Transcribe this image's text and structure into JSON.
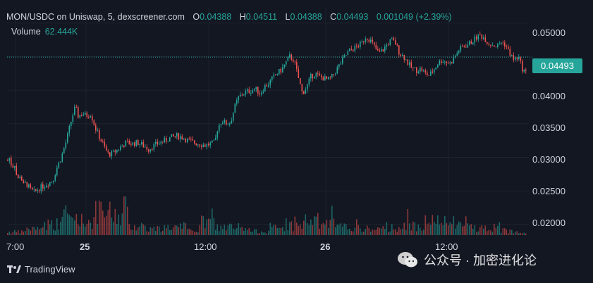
{
  "header": {
    "symbol": "MON/USDC on Uniswap, 5, dexscreener.com",
    "o_label": "O",
    "o_value": "0.04388",
    "h_label": "H",
    "h_value": "0.04511",
    "l_label": "L",
    "l_value": "0.04388",
    "c_label": "C",
    "c_value": "0.04493",
    "change": "0.001049 (+2.39%)"
  },
  "volume": {
    "label": "Volume",
    "value": "62.444K"
  },
  "last_price": "0.04493",
  "footer": {
    "brand": "TradingView"
  },
  "watermark": {
    "text": "公众号 · 加密进化论"
  },
  "colors": {
    "background": "#131722",
    "up": "#26a69a",
    "down": "#ef5350"
  },
  "chart_data": {
    "type": "candlestick",
    "title": "MON/USDC on Uniswap, 5, dexscreener.com",
    "interval": "5",
    "y_ticks": [
      "0.05000",
      "0.04500",
      "0.04000",
      "0.03500",
      "0.03000",
      "0.02500",
      "0.02000"
    ],
    "ylim": [
      0.0184,
      0.0524
    ],
    "x_ticks": [
      "7:00",
      "25",
      "12:00",
      "26",
      "12:00"
    ],
    "last_price": 0.04493,
    "price_path": [
      [
        0,
        0.0295
      ],
      [
        3,
        0.03
      ],
      [
        6,
        0.0285
      ],
      [
        10,
        0.029
      ],
      [
        14,
        0.0265
      ],
      [
        18,
        0.0275
      ],
      [
        22,
        0.0258
      ],
      [
        26,
        0.0262
      ],
      [
        32,
        0.0252
      ],
      [
        38,
        0.0248
      ],
      [
        46,
        0.0255
      ],
      [
        52,
        0.0258
      ],
      [
        58,
        0.0262
      ],
      [
        64,
        0.0265
      ],
      [
        70,
        0.0285
      ],
      [
        76,
        0.03
      ],
      [
        82,
        0.032
      ],
      [
        88,
        0.0345
      ],
      [
        92,
        0.0362
      ],
      [
        96,
        0.0375
      ],
      [
        100,
        0.0362
      ],
      [
        106,
        0.0365
      ],
      [
        112,
        0.0362
      ],
      [
        118,
        0.0365
      ],
      [
        124,
        0.0345
      ],
      [
        130,
        0.033
      ],
      [
        136,
        0.0318
      ],
      [
        142,
        0.0305
      ],
      [
        148,
        0.0305
      ],
      [
        154,
        0.031
      ],
      [
        160,
        0.0315
      ],
      [
        168,
        0.0322
      ],
      [
        176,
        0.032
      ],
      [
        184,
        0.0322
      ],
      [
        192,
        0.0318
      ],
      [
        200,
        0.0312
      ],
      [
        208,
        0.0318
      ],
      [
        216,
        0.0322
      ],
      [
        224,
        0.0325
      ],
      [
        232,
        0.033
      ],
      [
        240,
        0.0332
      ],
      [
        248,
        0.033
      ],
      [
        256,
        0.0325
      ],
      [
        264,
        0.0322
      ],
      [
        272,
        0.032
      ],
      [
        280,
        0.0318
      ],
      [
        288,
        0.032
      ],
      [
        294,
        0.0322
      ],
      [
        298,
        0.0345
      ],
      [
        304,
        0.0355
      ],
      [
        310,
        0.035
      ],
      [
        316,
        0.0352
      ],
      [
        322,
        0.0375
      ],
      [
        328,
        0.039
      ],
      [
        334,
        0.0395
      ],
      [
        340,
        0.0398
      ],
      [
        346,
        0.04
      ],
      [
        352,
        0.0402
      ],
      [
        358,
        0.0395
      ],
      [
        364,
        0.0405
      ],
      [
        370,
        0.041
      ],
      [
        376,
        0.0418
      ],
      [
        382,
        0.0425
      ],
      [
        388,
        0.043
      ],
      [
        394,
        0.044
      ],
      [
        400,
        0.045
      ],
      [
        406,
        0.0445
      ],
      [
        412,
        0.042
      ],
      [
        418,
        0.0395
      ],
      [
        424,
        0.0405
      ],
      [
        430,
        0.042
      ],
      [
        436,
        0.0425
      ],
      [
        442,
        0.042
      ],
      [
        448,
        0.0418
      ],
      [
        454,
        0.0415
      ],
      [
        460,
        0.042
      ],
      [
        466,
        0.043
      ],
      [
        472,
        0.044
      ],
      [
        478,
        0.045
      ],
      [
        484,
        0.0458
      ],
      [
        490,
        0.0462
      ],
      [
        496,
        0.0465
      ],
      [
        502,
        0.047
      ],
      [
        508,
        0.048
      ],
      [
        514,
        0.0475
      ],
      [
        520,
        0.0465
      ],
      [
        526,
        0.0455
      ],
      [
        532,
        0.046
      ],
      [
        538,
        0.0468
      ],
      [
        544,
        0.0475
      ],
      [
        550,
        0.047
      ],
      [
        556,
        0.0455
      ],
      [
        562,
        0.045
      ],
      [
        568,
        0.044
      ],
      [
        574,
        0.0432
      ],
      [
        580,
        0.043
      ],
      [
        586,
        0.0432
      ],
      [
        592,
        0.0425
      ],
      [
        598,
        0.0422
      ],
      [
        604,
        0.043
      ],
      [
        610,
        0.044
      ],
      [
        616,
        0.0445
      ],
      [
        622,
        0.0442
      ],
      [
        628,
        0.044
      ],
      [
        634,
        0.045
      ],
      [
        640,
        0.046
      ],
      [
        646,
        0.0465
      ],
      [
        652,
        0.0468
      ],
      [
        658,
        0.0472
      ],
      [
        664,
        0.0478
      ],
      [
        670,
        0.0482
      ],
      [
        676,
        0.0478
      ],
      [
        682,
        0.047
      ],
      [
        688,
        0.0468
      ],
      [
        694,
        0.0465
      ],
      [
        700,
        0.0472
      ],
      [
        706,
        0.0468
      ],
      [
        712,
        0.0455
      ],
      [
        718,
        0.0445
      ],
      [
        724,
        0.045
      ],
      [
        730,
        0.0432
      ],
      [
        736,
        0.0425
      ],
      [
        742,
        0.0449
      ]
    ],
    "volume_heights": [
      0.1,
      0.2,
      0.35,
      0.55,
      0.45,
      0.7,
      0.6,
      0.3,
      0.2,
      0.25,
      0.15,
      0.4,
      0.25,
      0.18,
      0.12,
      0.22,
      0.3,
      0.45,
      0.35,
      0.25,
      0.2,
      0.18,
      0.25,
      0.3,
      0.42,
      0.38,
      0.3,
      0.22,
      0.15,
      0.12
    ]
  }
}
